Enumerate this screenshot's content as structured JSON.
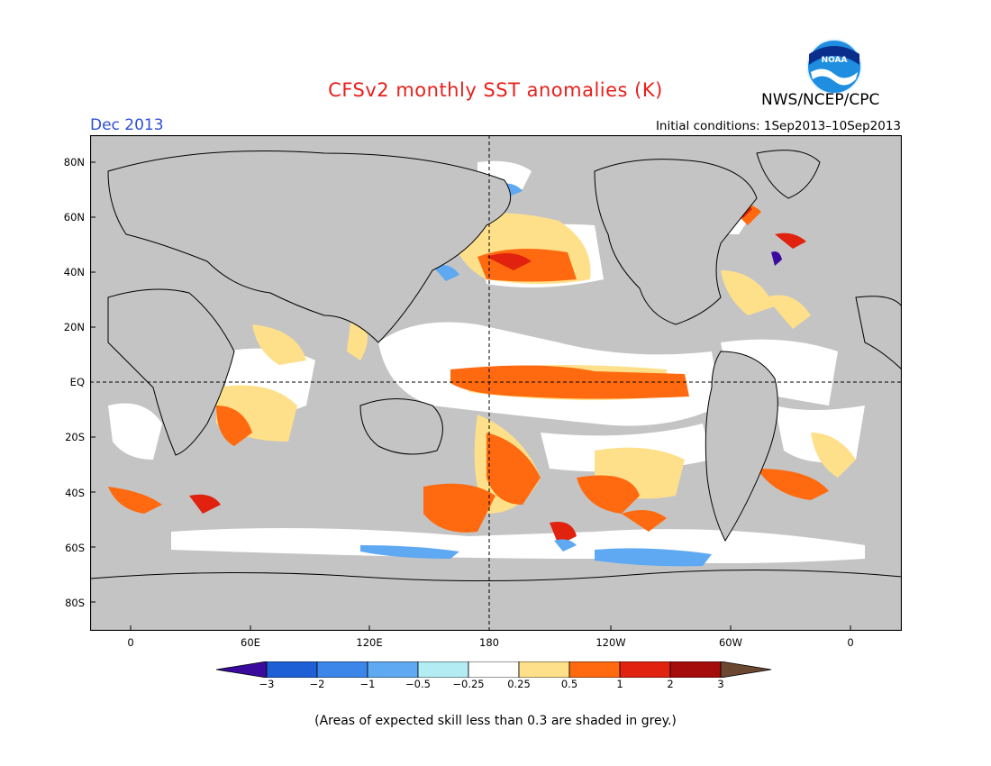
{
  "title": "CFSv2 monthly SST anomalies (K)",
  "agency": "NWS/NCEP/CPC",
  "logo_text": "NOAA",
  "valid_month": "Dec 2013",
  "initial_conditions": "Initial conditions: 1Sep2013–10Sep2013",
  "lat_labels": [
    "80N",
    "60N",
    "40N",
    "20N",
    "EQ",
    "20S",
    "40S",
    "60S",
    "80S"
  ],
  "lon_labels": [
    "0",
    "60E",
    "120E",
    "180",
    "120W",
    "60W",
    "0"
  ],
  "colorbar": {
    "ticks": [
      "−3",
      "−2",
      "−1",
      "−0.5",
      "−0.25",
      "0.25",
      "0.5",
      "1",
      "2",
      "3"
    ],
    "colors": [
      "#3a0a9e",
      "#1e5fd6",
      "#3b86e8",
      "#5ea9f2",
      "#b4ecf4",
      "#ffffff",
      "#ffe08a",
      "#ff6a10",
      "#e0220f",
      "#a50d0d",
      "#6b4631"
    ]
  },
  "colors": {
    "land": "#c4c4c4",
    "low_skill": "#c4c4c4",
    "title": "#e8201c",
    "month": "#2f4fd8"
  },
  "footnote": "(Areas of expected skill less than 0.3 are shaded in grey.)"
}
